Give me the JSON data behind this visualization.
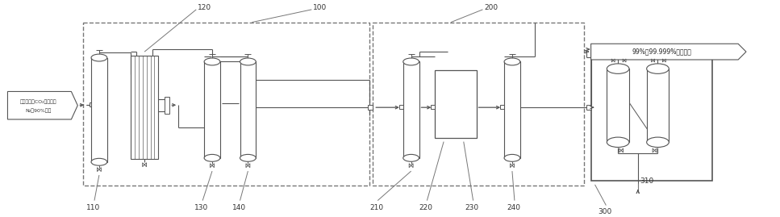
{
  "bg_color": "#ffffff",
  "lc": "#777777",
  "dc": "#555555",
  "input_text_line1": "化学法回收CO₂后的废气",
  "input_text_line2": "N₂：90%以上",
  "output_text": "99%～99.999%成哆氮气",
  "label_100": "100",
  "label_110": "110",
  "label_120": "120",
  "label_130": "130",
  "label_140": "140",
  "label_200": "200",
  "label_210": "210",
  "label_220": "220",
  "label_230": "230",
  "label_240": "240",
  "label_300": "300",
  "label_310": "310"
}
